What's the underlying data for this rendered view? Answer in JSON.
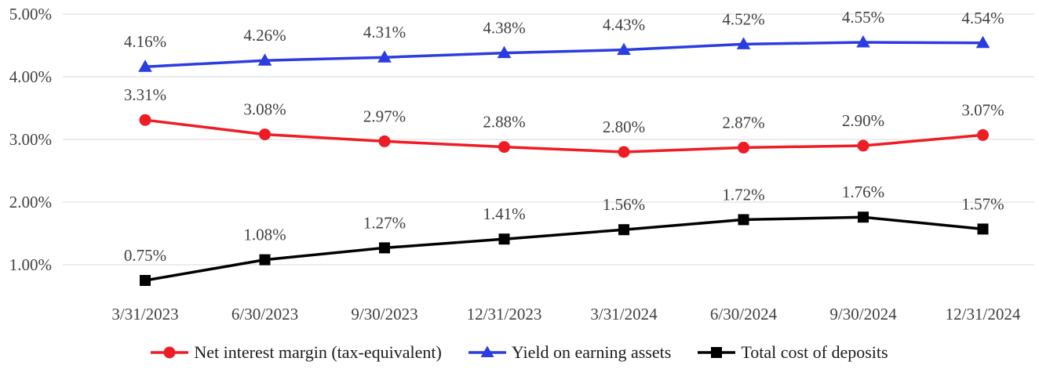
{
  "chart_data": {
    "type": "line",
    "title": "",
    "xlabel": "",
    "ylabel": "",
    "categories": [
      "3/31/2023",
      "6/30/2023",
      "9/30/2023",
      "12/31/2023",
      "3/31/2024",
      "6/30/2024",
      "9/30/2024",
      "12/31/2024"
    ],
    "series": [
      {
        "name": "Net interest margin (tax-equivalent)",
        "color": "#ee1c25",
        "marker": "circle",
        "values": [
          3.31,
          3.08,
          2.97,
          2.88,
          2.8,
          2.87,
          2.9,
          3.07
        ],
        "labels": [
          "3.31%",
          "3.08%",
          "2.97%",
          "2.88%",
          "2.80%",
          "2.87%",
          "2.90%",
          "3.07%"
        ]
      },
      {
        "name": "Yield on earning assets",
        "color": "#2b3ce0",
        "marker": "triangle",
        "values": [
          4.16,
          4.26,
          4.31,
          4.38,
          4.43,
          4.52,
          4.55,
          4.54
        ],
        "labels": [
          "4.16%",
          "4.26%",
          "4.31%",
          "4.38%",
          "4.43%",
          "4.52%",
          "4.55%",
          "4.54%"
        ]
      },
      {
        "name": "Total cost of deposits",
        "color": "#000000",
        "marker": "square",
        "values": [
          0.75,
          1.08,
          1.27,
          1.41,
          1.56,
          1.72,
          1.76,
          1.57
        ],
        "labels": [
          "0.75%",
          "1.08%",
          "1.27%",
          "1.41%",
          "1.56%",
          "1.72%",
          "1.76%",
          "1.57%"
        ]
      }
    ],
    "y_axis": {
      "min": 0.5,
      "max": 5.0,
      "ticks": [
        1,
        2,
        3,
        4,
        5
      ],
      "tick_labels": [
        "1.00%",
        "2.00%",
        "3.00%",
        "4.00%",
        "5.00%"
      ]
    },
    "grid": true,
    "legend_position": "bottom",
    "legend": [
      "Net interest margin (tax-equivalent)",
      "Yield on earning assets",
      "Total cost of deposits"
    ]
  },
  "colors": {
    "grid": "#d9d9d9",
    "axis_text": "#404040",
    "data_label_text": "#404040",
    "legend_text": "#1a1a1a"
  }
}
